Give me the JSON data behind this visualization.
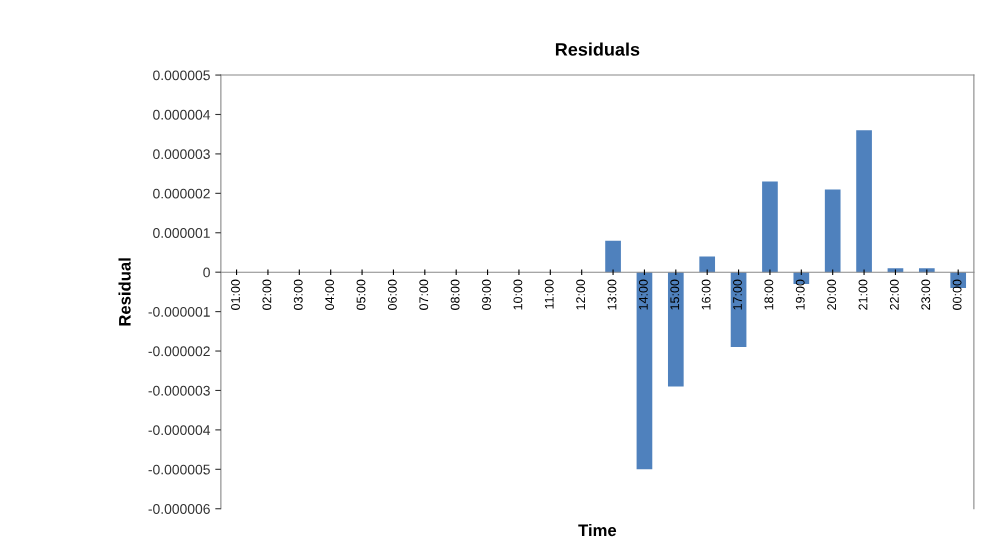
{
  "chart_data": {
    "type": "bar",
    "title": "Residuals",
    "xlabel": "Time",
    "ylabel": "Residual",
    "categories": [
      "01:00",
      "02:00",
      "03:00",
      "04:00",
      "05:00",
      "06:00",
      "07:00",
      "08:00",
      "09:00",
      "10:00",
      "11:00",
      "12:00",
      "13:00",
      "14:00",
      "15:00",
      "16:00",
      "17:00",
      "18:00",
      "19:00",
      "20:00",
      "21:00",
      "22:00",
      "23:00",
      "00:00"
    ],
    "values": [
      0,
      0,
      0,
      0,
      0,
      0,
      0,
      0,
      0,
      0,
      0,
      0,
      8e-07,
      -5e-06,
      -2.9e-06,
      4e-07,
      -1.9e-06,
      2.3e-06,
      -3e-07,
      2.1e-06,
      3.6e-06,
      1e-07,
      1e-07,
      -4e-07
    ],
    "color": "#4f81bd",
    "ylim": [
      -6e-06,
      5e-06
    ],
    "yticks": [
      {
        "value": 5e-06,
        "label": "0.000005"
      },
      {
        "value": 4e-06,
        "label": "0.000004"
      },
      {
        "value": 3e-06,
        "label": "0.000003"
      },
      {
        "value": 2e-06,
        "label": "0.000002"
      },
      {
        "value": 1e-06,
        "label": "0.000001"
      },
      {
        "value": 0,
        "label": "0"
      },
      {
        "value": -1e-06,
        "label": "-0.000001"
      },
      {
        "value": -2e-06,
        "label": "-0.000002"
      },
      {
        "value": -3e-06,
        "label": "-0.000003"
      },
      {
        "value": -4e-06,
        "label": "-0.000004"
      },
      {
        "value": -5e-06,
        "label": "-0.000005"
      },
      {
        "value": -6e-06,
        "label": "-0.000006"
      }
    ],
    "grid": false,
    "legend": false
  }
}
